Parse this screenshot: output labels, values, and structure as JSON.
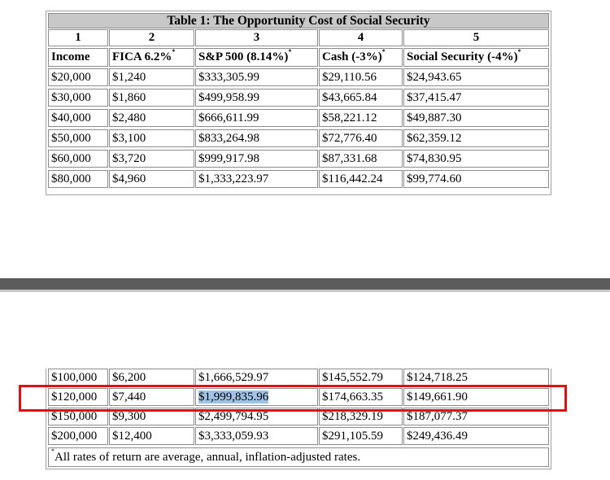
{
  "table": {
    "title": "Table 1: The Opportunity Cost of Social Security",
    "column_numbers": [
      "1",
      "2",
      "3",
      "4",
      "5"
    ],
    "column_headers": [
      {
        "label": "Income",
        "footnote": ""
      },
      {
        "label": "FICA 6.2%",
        "footnote": "*"
      },
      {
        "label": "S&P 500 (8.14%)",
        "footnote": "*"
      },
      {
        "label": "Cash (-3%)",
        "footnote": "*"
      },
      {
        "label": "Social Security (-4%)",
        "footnote": "*"
      }
    ],
    "rows_top": [
      [
        "$20,000",
        "$1,240",
        "$333,305.99",
        "$29,110.56",
        "$24,943.65"
      ],
      [
        "$30,000",
        "$1,860",
        "$499,958.99",
        "$43,665.84",
        "$37,415.47"
      ],
      [
        "$40,000",
        "$2,480",
        "$666,611.99",
        "$58,221.12",
        "$49,887.30"
      ],
      [
        "$50,000",
        "$3,100",
        "$833,264.98",
        "$72,776.40",
        "$62,359.12"
      ],
      [
        "$60,000",
        "$3,720",
        "$999,917.98",
        "$87,331.68",
        "$74,830.95"
      ],
      [
        "$80,000",
        "$4,960",
        "$1,333,223.97",
        "$116,442.24",
        "$99,774.60"
      ]
    ],
    "rows_bottom": [
      [
        "$100,000",
        "$6,200",
        "$1,666,529.97",
        "$145,552.79",
        "$124,718.25"
      ],
      [
        "$120,000",
        "$7,440",
        "$1,999,835.96",
        "$174,663.35",
        "$149,661.90"
      ],
      [
        "$150,000",
        "$9,300",
        "$2,499,794.95",
        "$218,329.19",
        "$187,077.37"
      ],
      [
        "$200,000",
        "$12,400",
        "$3,333,059.93",
        "$291,105.59",
        "$249,436.49"
      ]
    ],
    "selected_cell_text": "$1,999,835.96",
    "footnote_mark": "*",
    "footnote_text": "All rates of return are average, annual, inflation-adjusted rates."
  },
  "colors": {
    "title_bg": "#c8c8c8",
    "selection": "#9ec3e6",
    "highlight_box": "#e01010",
    "divider": "#5c5c5c"
  }
}
